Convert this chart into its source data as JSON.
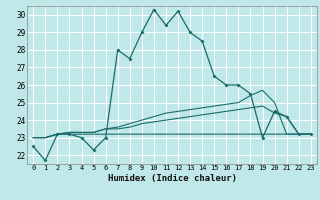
{
  "xlabel": "Humidex (Indice chaleur)",
  "bg_color": "#c0e8e8",
  "grid_color": "#ffffff",
  "line_color": "#1a6b6b",
  "xlim": [
    -0.5,
    23.5
  ],
  "ylim": [
    21.5,
    30.5
  ],
  "xticks": [
    0,
    1,
    2,
    3,
    4,
    5,
    6,
    7,
    8,
    9,
    10,
    11,
    12,
    13,
    14,
    15,
    16,
    17,
    18,
    19,
    20,
    21,
    22,
    23
  ],
  "yticks": [
    22,
    23,
    24,
    25,
    26,
    27,
    28,
    29,
    30
  ],
  "series_main": [
    22.5,
    21.7,
    23.2,
    23.2,
    23.0,
    22.3,
    23.0,
    28.0,
    27.5,
    29.0,
    30.3,
    29.4,
    30.2,
    29.0,
    28.5,
    26.5,
    26.0,
    26.0,
    25.5,
    23.0,
    24.5,
    24.2,
    23.2,
    23.2
  ],
  "series_upper": [
    23.0,
    23.0,
    23.2,
    23.3,
    23.3,
    23.3,
    23.5,
    23.6,
    23.8,
    24.0,
    24.2,
    24.4,
    24.5,
    24.6,
    24.7,
    24.8,
    24.9,
    25.0,
    25.4,
    25.7,
    25.0,
    23.2,
    23.2,
    23.2
  ],
  "series_mid": [
    23.0,
    23.0,
    23.2,
    23.3,
    23.3,
    23.3,
    23.5,
    23.5,
    23.6,
    23.8,
    23.9,
    24.0,
    24.1,
    24.2,
    24.3,
    24.4,
    24.5,
    24.6,
    24.7,
    24.8,
    24.4,
    24.2,
    23.2,
    23.2
  ],
  "series_lower": [
    23.0,
    23.0,
    23.2,
    23.2,
    23.2,
    23.2,
    23.2,
    23.2,
    23.2,
    23.2,
    23.2,
    23.2,
    23.2,
    23.2,
    23.2,
    23.2,
    23.2,
    23.2,
    23.2,
    23.2,
    23.2,
    23.2,
    23.2,
    23.2
  ]
}
